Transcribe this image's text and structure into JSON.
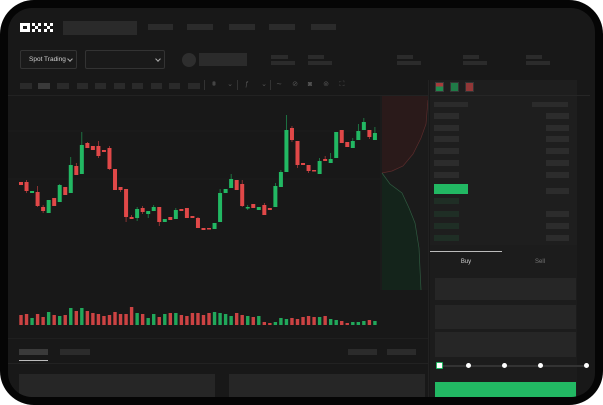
{
  "brand": {
    "logo_text": "OKX"
  },
  "header": {
    "market_selector": "Spot Trading"
  },
  "order_form": {
    "tabs": [
      "Buy",
      "Sell"
    ],
    "active_tab": "Buy",
    "leverage_slider_value": 0
  },
  "colors": {
    "up": "#22b863",
    "down": "#e04848",
    "background": "#181818",
    "panel": "#1e1e1e",
    "primary_button": "#22b863"
  },
  "icons": [
    "candle-type-icon",
    "chevron-down-icon",
    "indicator-icon",
    "chevron-down-icon",
    "line-tool-icon",
    "ruler-icon",
    "camera-icon",
    "settings-icon",
    "fullscreen-icon",
    "orderbook-both-icon",
    "orderbook-buy-icon",
    "orderbook-sell-icon"
  ],
  "chart_data": {
    "type": "candlestick",
    "candles": [
      [
        118,
        118,
        115,
        115
      ],
      [
        118,
        120,
        107,
        109
      ],
      [
        107,
        109,
        107,
        109
      ],
      [
        108,
        114,
        93,
        94
      ],
      [
        93,
        95,
        87,
        89
      ],
      [
        87,
        100,
        87,
        100
      ],
      [
        102,
        102,
        94,
        94
      ],
      [
        98,
        116,
        98,
        115
      ],
      [
        113,
        113,
        105,
        105
      ],
      [
        107,
        143,
        107,
        135
      ],
      [
        134,
        137,
        125,
        125
      ],
      [
        126,
        168,
        126,
        155
      ],
      [
        157,
        158,
        152,
        152
      ],
      [
        154,
        154,
        150,
        150
      ],
      [
        154,
        159,
        142,
        144
      ],
      [
        150,
        150,
        148,
        148
      ],
      [
        152,
        154,
        130,
        131
      ],
      [
        131,
        131,
        110,
        110
      ],
      [
        113,
        113,
        108,
        110
      ],
      [
        111,
        111,
        78,
        83
      ],
      [
        83,
        85,
        81,
        81
      ],
      [
        82,
        93,
        79,
        91
      ],
      [
        92,
        94,
        86,
        88
      ],
      [
        86,
        89,
        82,
        89
      ],
      [
        89,
        95,
        89,
        93
      ],
      [
        93,
        93,
        74,
        78
      ],
      [
        78,
        81,
        78,
        81
      ],
      [
        83,
        83,
        80,
        80
      ],
      [
        81,
        92,
        81,
        90
      ],
      [
        91,
        91,
        89,
        89
      ],
      [
        92,
        92,
        82,
        82
      ],
      [
        84,
        84,
        82,
        82
      ],
      [
        82,
        83,
        72,
        72
      ],
      [
        72,
        72,
        70,
        70
      ],
      [
        72,
        72,
        71,
        71
      ],
      [
        71,
        77,
        71,
        77
      ],
      [
        78,
        111,
        78,
        107
      ],
      [
        107,
        111,
        107,
        111
      ],
      [
        112,
        126,
        112,
        121
      ],
      [
        120,
        120,
        110,
        110
      ],
      [
        116,
        120,
        93,
        94
      ],
      [
        92,
        95,
        90,
        93
      ],
      [
        96,
        96,
        92,
        92
      ],
      [
        90,
        93,
        90,
        93
      ],
      [
        95,
        97,
        85,
        85
      ],
      [
        92,
        92,
        90,
        90
      ],
      [
        93,
        117,
        93,
        114
      ],
      [
        113,
        130,
        113,
        128
      ],
      [
        128,
        185,
        128,
        170
      ],
      [
        172,
        174,
        158,
        160
      ],
      [
        159,
        159,
        132,
        135
      ],
      [
        137,
        137,
        135,
        135
      ],
      [
        135,
        135,
        127,
        129
      ],
      [
        130,
        130,
        129,
        129
      ],
      [
        126,
        142,
        126,
        139
      ],
      [
        141,
        144,
        139,
        139
      ],
      [
        137,
        147,
        137,
        141
      ],
      [
        142,
        168,
        142,
        168
      ],
      [
        170,
        170,
        157,
        157
      ],
      [
        158,
        158,
        153,
        153
      ],
      [
        152,
        162,
        152,
        159
      ],
      [
        160,
        176,
        160,
        169
      ],
      [
        170,
        182,
        170,
        178
      ],
      [
        170,
        170,
        161,
        163
      ],
      [
        160,
        173,
        160,
        167
      ]
    ],
    "candle_format": [
      "open",
      "high",
      "low",
      "close"
    ],
    "volume": [
      10,
      11,
      7,
      11,
      8,
      13,
      10,
      9,
      10,
      17,
      14,
      17,
      14,
      12,
      11,
      9,
      10,
      13,
      11,
      11,
      18,
      12,
      11,
      7,
      11,
      8,
      11,
      12,
      12,
      10,
      9,
      12,
      12,
      10,
      12,
      13,
      12,
      11,
      9,
      12,
      10,
      9,
      8,
      9,
      3,
      2,
      3,
      7,
      6,
      7,
      6,
      8,
      9,
      8,
      8,
      9,
      6,
      5,
      4,
      2,
      3,
      3,
      4,
      5,
      4
    ]
  }
}
